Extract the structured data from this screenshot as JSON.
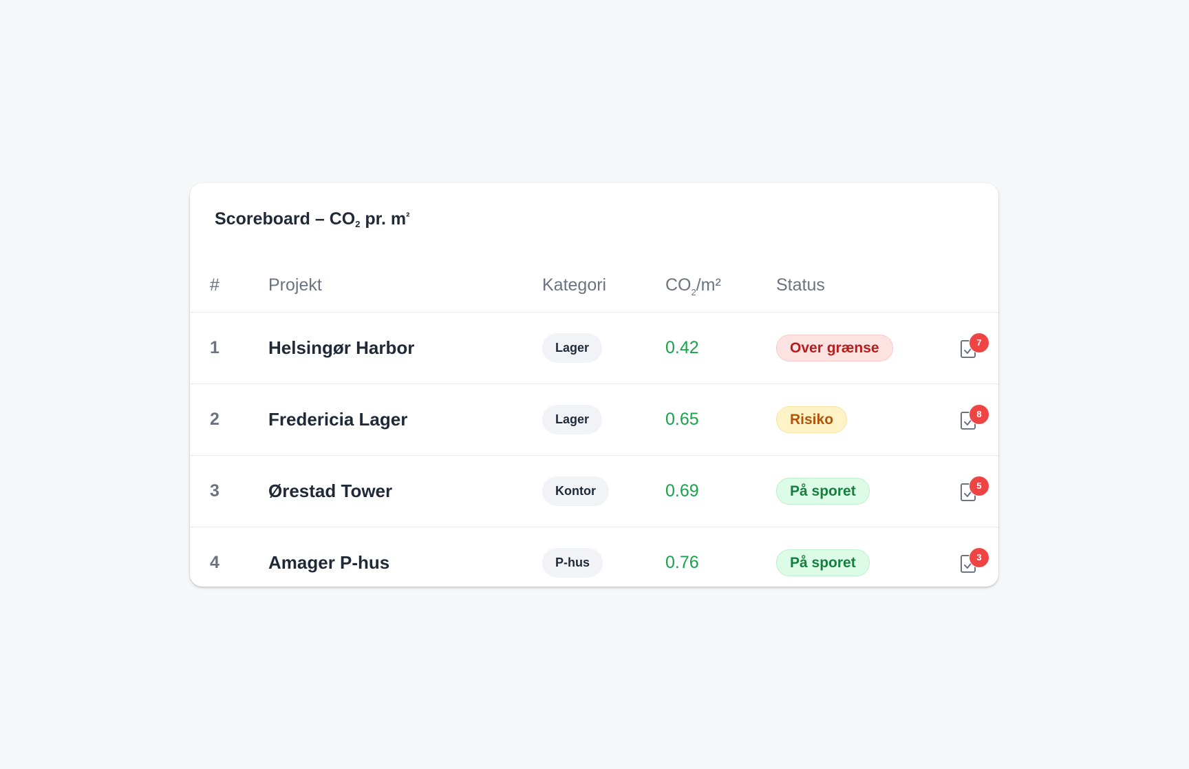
{
  "card": {
    "title_prefix": "Scoreboard – CO",
    "title_sub": "2",
    "title_suffix": " pr. m",
    "title_sup": "²"
  },
  "columns": {
    "rank": "#",
    "project": "Projekt",
    "category": "Kategori",
    "co2_prefix": "CO",
    "co2_sub": "2",
    "co2_suffix": "/m²",
    "status": "Status"
  },
  "rows": [
    {
      "rank": "1",
      "project": "Helsingør Harbor",
      "category": "Lager",
      "co2": "0.42",
      "status": "Over grænse",
      "status_type": "over",
      "tasks": "7"
    },
    {
      "rank": "2",
      "project": "Fredericia Lager",
      "category": "Lager",
      "co2": "0.65",
      "status": "Risiko",
      "status_type": "risk",
      "tasks": "8"
    },
    {
      "rank": "3",
      "project": "Ørestad Tower",
      "category": "Kontor",
      "co2": "0.69",
      "status": "På sporet",
      "status_type": "ok",
      "tasks": "5"
    },
    {
      "rank": "4",
      "project": "Amager P-hus",
      "category": "P-hus",
      "co2": "0.76",
      "status": "På sporet",
      "status_type": "ok",
      "tasks": "3"
    }
  ],
  "icons": {
    "task": "clipboard-check-icon"
  },
  "colors": {
    "co2_value": "#16a34a",
    "badge": "#ef4444",
    "status_over": "#b91c1c",
    "status_risk": "#b45309",
    "status_ok": "#15803d"
  }
}
